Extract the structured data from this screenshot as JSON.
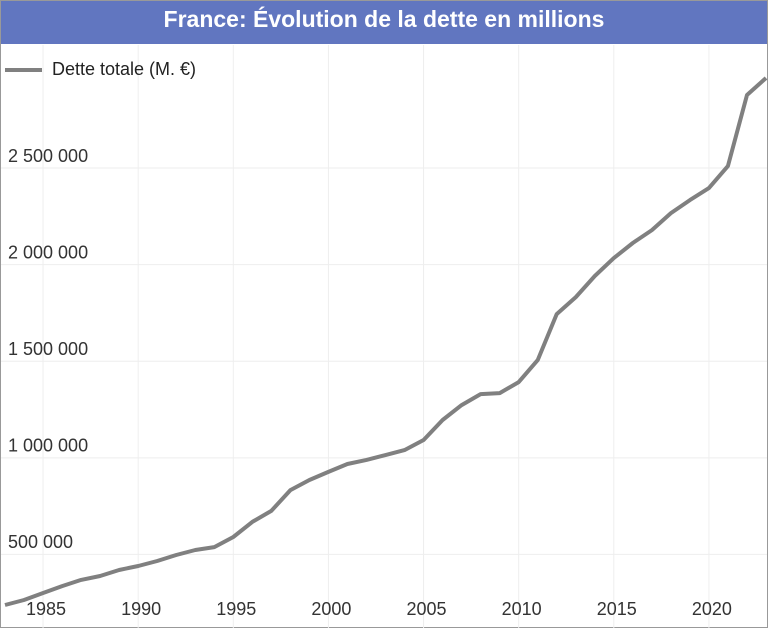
{
  "chart_data": {
    "type": "line",
    "title": "France: Évolution de la dette en millions",
    "x": [
      1983,
      1984,
      1985,
      1986,
      1987,
      1988,
      1989,
      1990,
      1991,
      1992,
      1993,
      1994,
      1995,
      1996,
      1997,
      1998,
      1999,
      2000,
      2001,
      2002,
      2003,
      2004,
      2005,
      2006,
      2007,
      2008,
      2009,
      2010,
      2011,
      2012,
      2013,
      2014,
      2015,
      2016,
      2017,
      2018,
      2019,
      2020,
      2021,
      2022,
      2023
    ],
    "series": [
      {
        "name": "Dette totale (M. €)",
        "color": "#808080",
        "values": [
          238000,
          264000,
          300000,
          336000,
          368000,
          388000,
          419000,
          440000,
          466000,
          497000,
          523000,
          538000,
          590000,
          668000,
          725000,
          833000,
          885000,
          927000,
          968000,
          989000,
          1014000,
          1040000,
          1092000,
          1196000,
          1273000,
          1330000,
          1335000,
          1392000,
          1506000,
          1744000,
          1832000,
          1941000,
          2034000,
          2112000,
          2179000,
          2267000,
          2334000,
          2396000,
          2510000,
          2878000,
          2966000
        ]
      }
    ],
    "xlim": [
      1983,
      2023
    ],
    "xticks": [
      1985,
      1990,
      1995,
      2000,
      2005,
      2010,
      2015,
      2020
    ],
    "ylim": [
      119000,
      3137000
    ],
    "yticks": [
      {
        "value": 500000,
        "label": "500 000"
      },
      {
        "value": 1000000,
        "label": "1 000 000"
      },
      {
        "value": 1500000,
        "label": "1 500 000"
      },
      {
        "value": 2000000,
        "label": "2 000 000"
      },
      {
        "value": 2500000,
        "label": "2 500 000"
      }
    ],
    "grid": true,
    "legend": "top-left"
  }
}
